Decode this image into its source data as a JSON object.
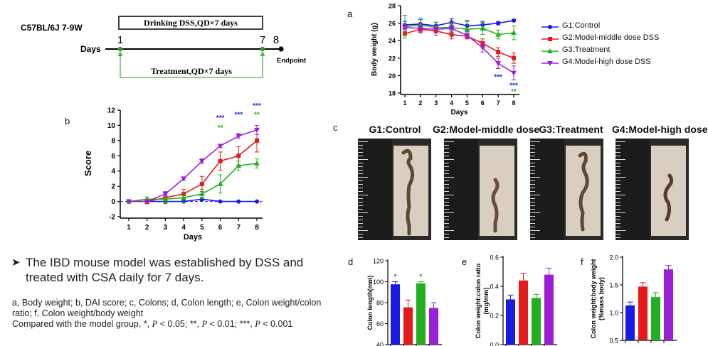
{
  "panel_letters": {
    "a": "a",
    "b": "b",
    "c": "c",
    "d": "d",
    "e": "e",
    "f": "f"
  },
  "timeline": {
    "strain": "C57BL/6J 7-9W",
    "drinking": "Drinking DSS,QD×7 days",
    "treatment": "Treatment,QD×7 days",
    "days_label": "Days",
    "endpoint": "Endpoint",
    "day_ticks": [
      "1",
      "7",
      "8"
    ]
  },
  "colors": {
    "g1": "#1a1ae6",
    "g2": "#e61a1a",
    "g3": "#22b022",
    "g4": "#9b1fd6"
  },
  "legend": [
    "G1:Control",
    "G2:Model-middle dose DSS",
    "G3:Treatment",
    "G4:Model-high dose DSS"
  ],
  "photo_labels": [
    "G1:Control",
    "G2:Model-middle dose",
    "G3:Treatment",
    "G4:Model-high dose"
  ],
  "bullet_text": "The IBD mouse model was established by DSS and treated with CSA daily for 7 days.",
  "caption_line1": "a, Body weight; b, DAI score; c, Colons; d, Colon length; e, Colon weight/colon ratio; f, Colon weight/body weight",
  "caption_line2_a": "Compared with the model group, *, ",
  "caption_p": "P",
  "caption_line2_b": " < 0.05; **, ",
  "caption_line2_c": " < 0.01; ***, ",
  "caption_line2_d": " < 0.001",
  "chart_data": [
    {
      "id": "a",
      "type": "line",
      "xlabel": "Days",
      "ylabel": "Body weight (g)",
      "x": [
        1,
        2,
        3,
        4,
        5,
        6,
        7,
        8
      ],
      "ylim": [
        18,
        28
      ],
      "yticks": [
        18,
        20,
        22,
        24,
        26,
        28
      ],
      "series": [
        {
          "name": "G1:Control",
          "values": [
            25.8,
            25.9,
            25.7,
            26.1,
            25.7,
            25.8,
            26.0,
            26.3
          ],
          "err": [
            0.4,
            0.5,
            0.4,
            0.4,
            0.6,
            0.4,
            0.2,
            0.1
          ]
        },
        {
          "name": "G2:Model-middle dose DSS",
          "values": [
            24.8,
            25.3,
            25.1,
            24.7,
            24.5,
            23.7,
            22.7,
            22.0
          ],
          "err": [
            0.5,
            0.4,
            0.5,
            0.5,
            0.3,
            0.5,
            0.5,
            0.6
          ]
        },
        {
          "name": "G3:Treatment",
          "values": [
            25.6,
            25.8,
            25.5,
            25.5,
            25.3,
            25.4,
            24.7,
            24.9
          ],
          "err": [
            1.3,
            0.8,
            0.6,
            0.6,
            0.9,
            0.7,
            0.5,
            0.8
          ]
        },
        {
          "name": "G4:Model-high dose DSS",
          "values": [
            25.5,
            25.4,
            25.3,
            25.4,
            24.6,
            23.2,
            21.4,
            20.3
          ],
          "err": [
            0.4,
            0.4,
            0.4,
            0.4,
            0.4,
            0.5,
            0.6,
            0.8
          ]
        }
      ],
      "annotations": [
        {
          "x": 7,
          "y": 19.6,
          "text": "***",
          "color": "#1a1ae6"
        },
        {
          "x": 8,
          "y": 18.6,
          "text": "***",
          "color": "#1a1ae6"
        },
        {
          "x": 8,
          "y": 17.9,
          "text": "**",
          "color": "#22b022"
        }
      ]
    },
    {
      "id": "b",
      "type": "line",
      "xlabel": "Days",
      "ylabel": "Score",
      "x": [
        1,
        2,
        3,
        4,
        5,
        6,
        7,
        8
      ],
      "ylim": [
        -2,
        12
      ],
      "yticks": [
        -2,
        0,
        2,
        4,
        6,
        8,
        10,
        12
      ],
      "series": [
        {
          "name": "G1:Control",
          "values": [
            0,
            0,
            0,
            0,
            0.3,
            0,
            0,
            0
          ],
          "err": [
            0,
            0,
            0,
            0,
            0.2,
            0,
            0,
            0
          ]
        },
        {
          "name": "G2:Model-middle dose DSS",
          "values": [
            0,
            0,
            0.5,
            1,
            2.3,
            5.3,
            6.0,
            8.0
          ],
          "err": [
            0,
            0.3,
            0.6,
            0.6,
            1.0,
            1.2,
            1.2,
            1.5
          ]
        },
        {
          "name": "G3:Treatment",
          "values": [
            0,
            0.3,
            0.3,
            0.5,
            1.0,
            2.3,
            4.7,
            5.0
          ],
          "err": [
            0,
            0.3,
            0.6,
            0.6,
            0.6,
            1.2,
            0.6,
            0.6
          ]
        },
        {
          "name": "G4:Model-high dose DSS",
          "values": [
            0,
            0,
            1,
            3,
            5.3,
            7.3,
            8.6,
            9.4
          ],
          "err": [
            0,
            0,
            0.3,
            0.2,
            0.3,
            0.2,
            0.3,
            0.6
          ]
        }
      ],
      "annotations": [
        {
          "x": 6,
          "y": 10.7,
          "text": "***",
          "color": "#1a1ae6"
        },
        {
          "x": 6,
          "y": 9.4,
          "text": "**",
          "color": "#22b022"
        },
        {
          "x": 7,
          "y": 11.1,
          "text": "***",
          "color": "#1a1ae6"
        },
        {
          "x": 8,
          "y": 12.3,
          "text": "***",
          "color": "#1a1ae6"
        },
        {
          "x": 8,
          "y": 11.1,
          "text": "**",
          "color": "#22b022"
        }
      ]
    },
    {
      "id": "d",
      "type": "bar",
      "ylabel": "Colon length(mm)",
      "ylim": [
        40,
        120
      ],
      "yticks": [
        40,
        60,
        80,
        100,
        120
      ],
      "values": [
        97.5,
        75.5,
        98.5,
        75
      ],
      "err": [
        2.5,
        7,
        1.5,
        5
      ],
      "annotations": [
        "*",
        "",
        "*",
        ""
      ]
    },
    {
      "id": "e",
      "type": "bar",
      "ylabel": "Colon weight:colon ratio (mg/mm)",
      "ylim": [
        0.0,
        0.6
      ],
      "yticks": [
        0.0,
        0.2,
        0.4,
        0.6
      ],
      "values": [
        0.31,
        0.44,
        0.32,
        0.48
      ],
      "err": [
        0.03,
        0.05,
        0.025,
        0.045
      ]
    },
    {
      "id": "f",
      "type": "bar",
      "ylabel": "Colon weight:body weight (%mass body)",
      "ylim": [
        0.5,
        2.0
      ],
      "yticks": [
        0.5,
        1.0,
        1.5,
        2.0
      ],
      "values": [
        1.13,
        1.47,
        1.28,
        1.78
      ],
      "err": [
        0.06,
        0.07,
        0.08,
        0.07
      ]
    }
  ]
}
